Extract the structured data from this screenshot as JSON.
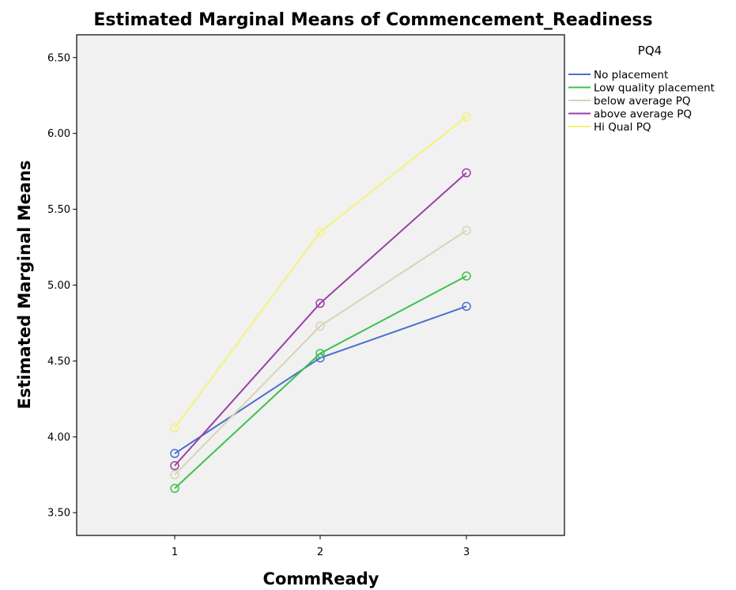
{
  "chart_data": {
    "type": "line",
    "title": "Estimated Marginal Means of Commencement_Readiness",
    "xlabel": "CommReady",
    "ylabel": "Estimated Marginal Means",
    "categories": [
      "1",
      "2",
      "3"
    ],
    "ylim": [
      3.35,
      6.65
    ],
    "yticks": [
      "3.50",
      "4.00",
      "4.50",
      "5.00",
      "5.50",
      "6.00",
      "6.50"
    ],
    "grid": false,
    "legend_title": "PQ4",
    "legend_position": "right",
    "series": [
      {
        "name": "No placement",
        "color": "#4a6fd0",
        "values": [
          3.89,
          4.52,
          4.86
        ]
      },
      {
        "name": "Low quality placement",
        "color": "#3ec24a",
        "values": [
          3.66,
          4.55,
          5.06
        ]
      },
      {
        "name": "below average PQ",
        "color": "#d8d4b4",
        "values": [
          3.75,
          4.73,
          5.36
        ]
      },
      {
        "name": "above average PQ",
        "color": "#9a40a6",
        "values": [
          3.81,
          4.88,
          5.74
        ]
      },
      {
        "name": "Hi Qual PQ",
        "color": "#f4f27a",
        "values": [
          4.06,
          5.35,
          6.11
        ]
      }
    ]
  }
}
